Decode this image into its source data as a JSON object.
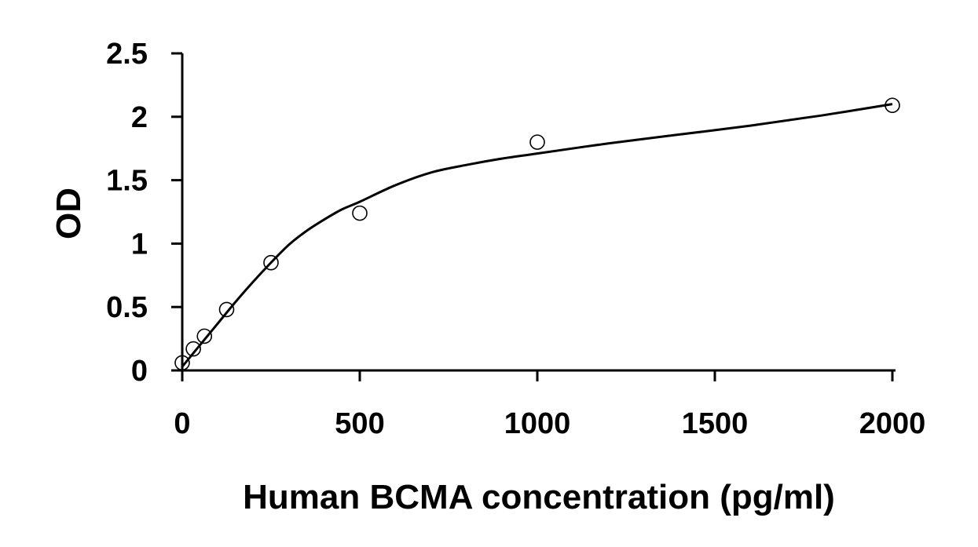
{
  "chart_data": {
    "type": "scatter",
    "title": "",
    "xlabel": "Human BCMA concentration (pg/ml)",
    "ylabel": "OD",
    "xlim": [
      0,
      2000
    ],
    "ylim": [
      0,
      2.5
    ],
    "x_ticks": [
      "0",
      "500",
      "1000",
      "1500",
      "2000"
    ],
    "y_ticks": [
      "0",
      "0.5",
      "1",
      "1.5",
      "2",
      "2.5"
    ],
    "grid": false,
    "legend": "none",
    "series": [
      {
        "points": [
          {
            "x": 0,
            "y": 0.06
          },
          {
            "x": 31.25,
            "y": 0.17
          },
          {
            "x": 62.5,
            "y": 0.27
          },
          {
            "x": 125,
            "y": 0.48
          },
          {
            "x": 250,
            "y": 0.85
          },
          {
            "x": 500,
            "y": 1.24
          },
          {
            "x": 1000,
            "y": 1.8
          },
          {
            "x": 2000,
            "y": 2.09
          }
        ]
      }
    ],
    "fit_curve": {
      "x": [
        0,
        50,
        100,
        150,
        200,
        250,
        300,
        350,
        400,
        450,
        500,
        600,
        700,
        800,
        900,
        1000,
        1200,
        1400,
        1600,
        1800,
        2000
      ],
      "y": [
        0.03,
        0.2,
        0.37,
        0.54,
        0.7,
        0.85,
        0.99,
        1.1,
        1.19,
        1.27,
        1.33,
        1.46,
        1.56,
        1.62,
        1.67,
        1.71,
        1.79,
        1.86,
        1.93,
        2.01,
        2.1
      ]
    },
    "colors": {
      "axis": "#000000",
      "curve": "#000000",
      "marker_stroke": "#000000",
      "marker_fill": "#ffffff"
    }
  }
}
